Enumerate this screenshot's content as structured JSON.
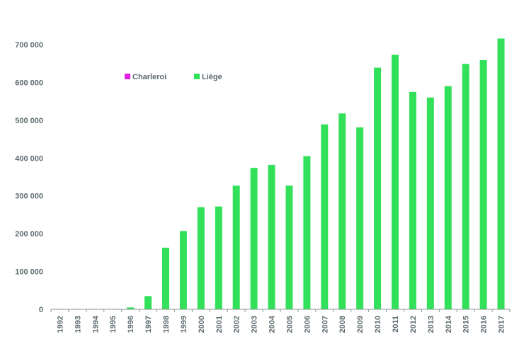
{
  "chart_data": {
    "type": "bar",
    "categories": [
      "1992",
      "1993",
      "1994",
      "1995",
      "1996",
      "1997",
      "1998",
      "1999",
      "2000",
      "2001",
      "2002",
      "2003",
      "2004",
      "2005",
      "2006",
      "2007",
      "2008",
      "2009",
      "2010",
      "2011",
      "2012",
      "2013",
      "2014",
      "2015",
      "2016",
      "2017"
    ],
    "series": [
      {
        "name": "Charleroi",
        "color": "#e61ee6",
        "values": [
          0,
          0,
          0,
          0,
          0,
          0,
          0,
          0,
          0,
          0,
          0,
          0,
          0,
          0,
          0,
          0,
          0,
          0,
          0,
          0,
          0,
          0,
          0,
          0,
          0,
          0
        ]
      },
      {
        "name": "Liège",
        "color": "#33e05a",
        "values": [
          0,
          500,
          500,
          500,
          5000,
          35000,
          163000,
          207000,
          270000,
          272000,
          327000,
          374000,
          382000,
          327000,
          405000,
          489000,
          518000,
          481000,
          639000,
          673000,
          575000,
          560000,
          590000,
          649000,
          659000,
          716000
        ]
      }
    ],
    "yticks": [
      "0",
      "100 000",
      "200 000",
      "300 000",
      "400 000",
      "500 000",
      "600 000",
      "700 000"
    ],
    "ylim": [
      0,
      700000
    ],
    "title": "",
    "xlabel": "",
    "ylabel": "",
    "legend_position": "top-left",
    "grid": false
  }
}
